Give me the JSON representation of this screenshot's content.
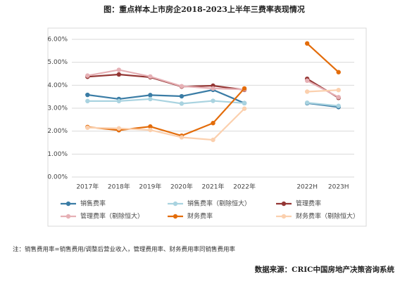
{
  "chart_data": {
    "type": "line",
    "title": "图：重点样本上市房企2018-2023上半年三费率表现情况",
    "categories": [
      "2017年",
      "2018年",
      "2019年",
      "2020年",
      "2021年",
      "2022年",
      null,
      "2022H",
      "2023H"
    ],
    "series": [
      {
        "name": "销售费率",
        "color": "#3a7ca5",
        "values": [
          3.58,
          3.4,
          3.57,
          3.52,
          3.8,
          3.22,
          null,
          3.22,
          3.05
        ]
      },
      {
        "name": "销售费率（剔除恒大）",
        "color": "#a9d3e0",
        "values": [
          3.31,
          3.31,
          3.4,
          3.2,
          3.32,
          3.22,
          null,
          3.24,
          3.1
        ]
      },
      {
        "name": "管理费率",
        "color": "#943634",
        "values": [
          4.37,
          4.47,
          4.35,
          3.94,
          3.98,
          3.8,
          null,
          4.28,
          3.45
        ]
      },
      {
        "name": "管理费率（剔除恒大）",
        "color": "#e6b0b5",
        "values": [
          4.42,
          4.67,
          4.38,
          3.96,
          3.86,
          3.82,
          null,
          4.2,
          3.48
        ]
      },
      {
        "name": "财务费率",
        "color": "#e36c0a",
        "values": [
          2.18,
          2.04,
          2.2,
          1.8,
          2.35,
          3.86,
          null,
          5.82,
          4.57
        ]
      },
      {
        "name": "财务费率（剔除恒大）",
        "color": "#fbd0ae",
        "values": [
          2.15,
          2.12,
          2.05,
          1.73,
          1.62,
          2.98,
          null,
          3.72,
          3.79
        ]
      }
    ],
    "ylim": [
      0,
      6
    ],
    "yticks": [
      {
        "value": 0,
        "label": "0.00%"
      },
      {
        "value": 1,
        "label": "1.00%"
      },
      {
        "value": 2,
        "label": "2.00%"
      },
      {
        "value": 3,
        "label": "3.00%"
      },
      {
        "value": 4,
        "label": "4.00%"
      },
      {
        "value": 5,
        "label": "5.00%"
      },
      {
        "value": 6,
        "label": "6.00%"
      }
    ],
    "grid": true,
    "note": "注：销售费用率=销售费用/调整后营业收入，管理费用率、财务费用率同销售费用率",
    "source": "数据来源：CRIC中国房地产决策咨询系统"
  }
}
